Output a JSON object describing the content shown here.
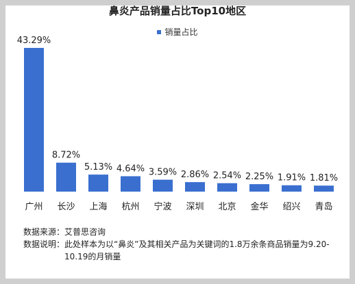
{
  "chart_data": {
    "type": "bar",
    "title": "鼻炎产品销量占比Top10地区",
    "categories": [
      "广州",
      "长沙",
      "上海",
      "杭州",
      "宁波",
      "深圳",
      "北京",
      "金华",
      "绍兴",
      "青岛"
    ],
    "series": [
      {
        "name": "销量占比",
        "values": [
          43.29,
          8.72,
          5.13,
          4.64,
          3.59,
          2.86,
          2.54,
          2.25,
          1.91,
          1.81
        ],
        "labels": [
          "43.29%",
          "8.72%",
          "5.13%",
          "4.64%",
          "3.59%",
          "2.86%",
          "2.54%",
          "2.25%",
          "1.91%",
          "1.81%"
        ],
        "color": "#3a6fcf"
      }
    ],
    "legend": "top-center",
    "grid": false,
    "xlabel": "",
    "ylabel": ""
  },
  "notes": {
    "source_label": "数据来源：",
    "source_text": "艾普思咨询",
    "desc_label": "数据说明：",
    "desc_text": "此处样本为以“鼻炎”及其相关产品为关键词的1.8万余条商品销量为9.20-10.19的月销量"
  }
}
